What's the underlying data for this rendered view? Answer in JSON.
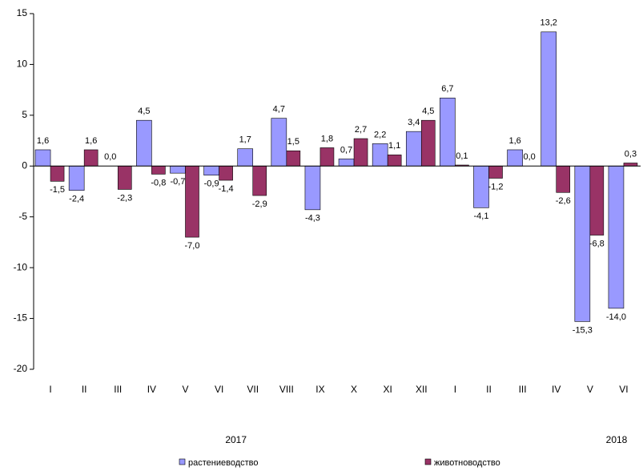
{
  "chart_data": {
    "type": "bar",
    "categories": [
      "I",
      "II",
      "III",
      "IV",
      "V",
      "VI",
      "VII",
      "VIII",
      "IX",
      "X",
      "XI",
      "XII",
      "I",
      "II",
      "III",
      "IV",
      "V",
      "VI"
    ],
    "groups": [
      "2017",
      "2018"
    ],
    "series": [
      {
        "name": "растениеводство",
        "color": "#9999ff",
        "values": [
          1.6,
          -2.4,
          0.0,
          4.5,
          -0.7,
          -0.9,
          1.7,
          4.7,
          -4.3,
          0.7,
          2.2,
          3.4,
          6.7,
          -4.1,
          1.6,
          13.2,
          -15.3,
          -14.0
        ],
        "value_labels": [
          "1,6",
          "-2,4",
          "0,0",
          "4,5",
          "-0,7",
          "-0,9",
          "1,7",
          "4,7",
          "-4,3",
          "0,7",
          "2,2",
          "3,4",
          "6,7",
          "-4,1",
          "1,6",
          "13,2",
          "-15,3",
          "-14,0"
        ]
      },
      {
        "name": "животноводство",
        "color": "#993366",
        "values": [
          -1.5,
          1.6,
          -2.3,
          -0.8,
          -7.0,
          -1.4,
          -2.9,
          1.5,
          1.8,
          2.7,
          1.1,
          4.5,
          0.1,
          -1.2,
          0.0,
          -2.6,
          -6.8,
          0.3
        ],
        "value_labels": [
          "-1,5",
          "1,6",
          "-2,3",
          "-0,8",
          "-7,0",
          "-1,4",
          "-2,9",
          "1,5",
          "1,8",
          "2,7",
          "1,1",
          "4,5",
          "0,1",
          "-1,2",
          "0,0",
          "-2,6",
          "-6,8",
          "0,3"
        ]
      }
    ],
    "ylim": [
      -20,
      15
    ],
    "yticks": [
      -20,
      -15,
      -10,
      -5,
      0,
      5,
      10,
      15
    ]
  }
}
